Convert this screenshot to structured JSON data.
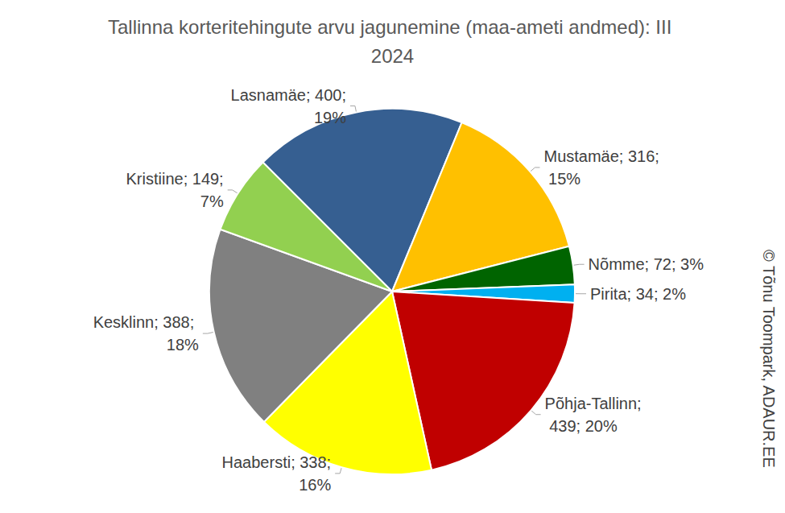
{
  "chart_data": {
    "type": "pie",
    "title": "Tallinna korteritehingute arvu jagunemine (maa-ameti andmed): III 2024",
    "categories": [
      "Lasnamäe",
      "Mustamäe",
      "Nõmme",
      "Pirita",
      "Põhja-Tallinn",
      "Haabersti",
      "Kesklinn",
      "Kristiine"
    ],
    "values": [
      400,
      316,
      72,
      34,
      439,
      338,
      388,
      149
    ],
    "percents": [
      19,
      15,
      3,
      2,
      20,
      16,
      18,
      7
    ],
    "value_labels": [
      "Lasnamäe; 400; 19%",
      "Mustamäe; 316; 15%",
      "Nõmme; 72; 3%",
      "Pirita; 34; 2%",
      "Põhja-Tallinn; 439; 20%",
      "Haabersti; 338; 16%",
      "Kesklinn; 388; 18%",
      "Kristiine; 149; 7%"
    ],
    "colors": [
      "#365F91",
      "#FFC000",
      "#006400",
      "#00B0F0",
      "#C00000",
      "#FFFF00",
      "#808080",
      "#92D050"
    ],
    "data_labels": true,
    "annotations": [
      "© Tõnu Toompark, ADAUR.EE"
    ]
  }
}
